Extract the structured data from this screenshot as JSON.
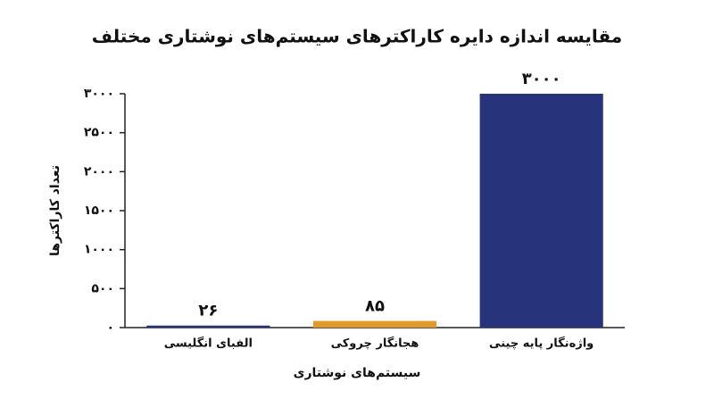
{
  "chart_data": {
    "type": "bar",
    "title": "مقایسه اندازه دایره کاراکترهای سیستم‌های نوشتاری مختلف",
    "x_label": "سیستم‌های نوشتاری",
    "y_label": "تعداد کاراکترها",
    "categories": [
      "الفبای انگلیسی",
      "هجانگار چروکی",
      "واژه‌نگار پایه چینی"
    ],
    "values": [
      26,
      85,
      3000
    ],
    "value_labels": [
      "۲۶",
      "۸۵",
      "۳۰۰۰"
    ],
    "colors": [
      "#27337a",
      "#e29b29",
      "#27337a"
    ],
    "ylim": [
      0,
      3000
    ],
    "yticks": [
      {
        "value": 0,
        "label": "۰"
      },
      {
        "value": 500,
        "label": "۵۰۰"
      },
      {
        "value": 1000,
        "label": "۱۰۰۰"
      },
      {
        "value": 1500,
        "label": "۱۵۰۰"
      },
      {
        "value": 2000,
        "label": "۲۰۰۰"
      },
      {
        "value": 2500,
        "label": "۲۵۰۰"
      },
      {
        "value": 3000,
        "label": "۳۰۰۰"
      }
    ],
    "grid": false
  }
}
